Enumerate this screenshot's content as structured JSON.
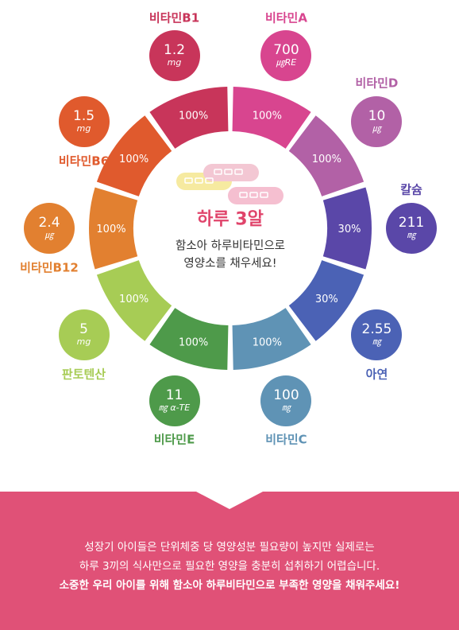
{
  "center": {
    "title": "하루 3알",
    "subtitle_line1": "함소아 하루비타민으로",
    "subtitle_line2": "영양소를 채우세요!"
  },
  "nutrients": [
    {
      "name": "비타민A",
      "value": "700",
      "unit": "㎍RE",
      "percent": "100%",
      "color": "#d8458f"
    },
    {
      "name": "비타민D",
      "value": "10",
      "unit": "㎍",
      "percent": "100%",
      "color": "#b261a6"
    },
    {
      "name": "칼슘",
      "value": "211",
      "unit": "㎎",
      "percent": "30%",
      "color": "#5a47a8"
    },
    {
      "name": "아연",
      "value": "2.55",
      "unit": "㎎",
      "percent": "30%",
      "color": "#4b62b5"
    },
    {
      "name": "비타민C",
      "value": "100",
      "unit": "㎎",
      "percent": "100%",
      "color": "#5f93b5"
    },
    {
      "name": "비타민E",
      "value": "11",
      "unit": "㎎ α-TE",
      "percent": "100%",
      "color": "#4e9a4a"
    },
    {
      "name": "판토텐산",
      "value": "5",
      "unit": "mg",
      "percent": "100%",
      "color": "#a7cc55"
    },
    {
      "name": "비타민B12",
      "value": "2.4",
      "unit": "㎍",
      "percent": "100%",
      "color": "#e28030"
    },
    {
      "name": "비타민B6",
      "value": "1.5",
      "unit": "mg",
      "percent": "100%",
      "color": "#e05a2d"
    },
    {
      "name": "비타민B1",
      "value": "1.2",
      "unit": "mg",
      "percent": "100%",
      "color": "#c8355a"
    }
  ],
  "banner": {
    "line1": "성장기 아이들은 단위체중 당 영양성분 필요량이 높지만 실제로는",
    "line2": "하루 3끼의 식사만으로 필요한 영양을 충분히 섭취하기 어렵습니다.",
    "line3": "소중한 우리 아이를 위해 함소아 하루비타민으로 부족한 영양을 채워주세요!",
    "color": "#e05177"
  }
}
